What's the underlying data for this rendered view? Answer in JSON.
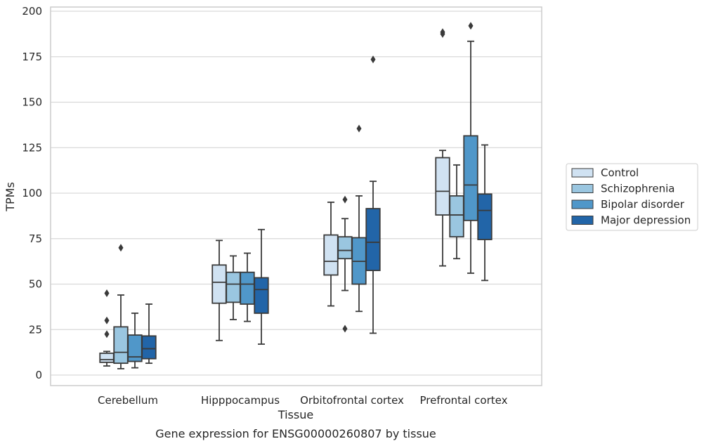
{
  "chart_data": {
    "type": "box",
    "title": "Gene expression for ENSG00000260807 by tissue",
    "xlabel": "Tissue",
    "ylabel": "TPMs",
    "ylim": [
      -5,
      201
    ],
    "yticks": [
      0,
      25,
      50,
      75,
      100,
      125,
      150,
      175,
      200
    ],
    "grid": "horizontal",
    "legend_position": "right",
    "categories": [
      "Cerebellum",
      "Hipppocampus",
      "Orbitofrontal cortex",
      "Prefrontal cortex"
    ],
    "series": [
      {
        "name": "Control",
        "color": "#d0e2f2",
        "boxes": [
          {
            "whislo": 5,
            "q1": 7,
            "med": 8.5,
            "q3": 12,
            "whishi": 13,
            "fliers": []
          },
          {
            "whislo": 19,
            "q1": 39.5,
            "med": 51,
            "q3": 60.5,
            "whishi": 74,
            "fliers": []
          },
          {
            "whislo": 38,
            "q1": 55,
            "med": 62.5,
            "q3": 77,
            "whishi": 95,
            "fliers": []
          },
          {
            "whislo": 60,
            "q1": 88,
            "med": 101,
            "q3": 119.5,
            "whishi": 123.5,
            "fliers": [
              187.5,
              188.5
            ]
          }
        ]
      },
      {
        "name": "Schizophrenia",
        "color": "#9ac6e0",
        "boxes": [
          {
            "whislo": 3.5,
            "q1": 6.5,
            "med": 12.5,
            "q3": 26.5,
            "whishi": 44,
            "fliers": [
              70
            ]
          },
          {
            "whislo": 30.5,
            "q1": 40,
            "med": 50,
            "q3": 56.5,
            "whishi": 65.5,
            "fliers": []
          },
          {
            "whislo": 46.5,
            "q1": 64,
            "med": 68.5,
            "q3": 76,
            "whishi": 86,
            "fliers": [
              25.5,
              96.5
            ]
          },
          {
            "whislo": 64,
            "q1": 76,
            "med": 88,
            "q3": 98.5,
            "whishi": 115.5,
            "fliers": []
          }
        ]
      },
      {
        "name": "Bipolar disorder",
        "color": "#5097c9",
        "boxes": [
          {
            "whislo": 4,
            "q1": 7.5,
            "med": 10,
            "q3": 22,
            "whishi": 34,
            "fliers": []
          },
          {
            "whislo": 29.5,
            "q1": 39,
            "med": 50,
            "q3": 56.5,
            "whishi": 67,
            "fliers": []
          },
          {
            "whislo": 35,
            "q1": 50,
            "med": 62.5,
            "q3": 75.5,
            "whishi": 98.5,
            "fliers": [
              135.5
            ]
          },
          {
            "whislo": 56,
            "q1": 85,
            "med": 104.5,
            "q3": 131.5,
            "whishi": 183.5,
            "fliers": [
              192
            ]
          }
        ]
      },
      {
        "name": "Major depression",
        "color": "#2265a8",
        "boxes": [
          {
            "whislo": 6.5,
            "q1": 9,
            "med": 14.5,
            "q3": 21.5,
            "whishi": 39,
            "fliers": []
          },
          {
            "whislo": 17,
            "q1": 34,
            "med": 47,
            "q3": 53.5,
            "whishi": 80,
            "fliers": []
          },
          {
            "whislo": 23,
            "q1": 57.5,
            "med": 73,
            "q3": 91.5,
            "whishi": 106.5,
            "fliers": [
              173.5
            ]
          },
          {
            "whislo": 52,
            "q1": 74.5,
            "med": 90.5,
            "q3": 99.5,
            "whishi": 126.5,
            "fliers": []
          }
        ]
      }
    ],
    "extra_fliers": [
      {
        "category": 0,
        "series": 0,
        "values": [
          22.5,
          30,
          45
        ]
      }
    ]
  }
}
